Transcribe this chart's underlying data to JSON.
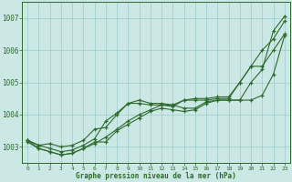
{
  "background_color": "#cce8e4",
  "grid_color": "#99cccc",
  "line_color": "#2d6a2d",
  "marker_color": "#2d6a2d",
  "xlabel": "Graphe pression niveau de la mer (hPa)",
  "xlim": [
    -0.5,
    23.5
  ],
  "ylim": [
    1002.5,
    1007.5
  ],
  "yticks": [
    1003,
    1004,
    1005,
    1006,
    1007
  ],
  "xticks": [
    0,
    1,
    2,
    3,
    4,
    5,
    6,
    7,
    8,
    9,
    10,
    11,
    12,
    13,
    14,
    15,
    16,
    17,
    18,
    19,
    20,
    21,
    22,
    23
  ],
  "series": [
    [
      1003.2,
      1003.05,
      1002.95,
      1002.85,
      1002.9,
      1003.05,
      1003.25,
      1003.8,
      1004.05,
      1004.35,
      1004.35,
      1004.3,
      1004.3,
      1004.25,
      1004.45,
      1004.45,
      1004.45,
      1004.5,
      1004.5,
      1005.0,
      1005.5,
      1006.0,
      1006.35,
      1006.9
    ],
    [
      1003.15,
      1002.95,
      1002.85,
      1002.75,
      1002.8,
      1002.95,
      1003.1,
      1003.3,
      1003.55,
      1003.8,
      1004.0,
      1004.15,
      1004.3,
      1004.3,
      1004.2,
      1004.2,
      1004.4,
      1004.45,
      1004.45,
      1004.45,
      1005.0,
      1005.4,
      1006.6,
      1007.05
    ],
    [
      1003.2,
      1002.95,
      1002.85,
      1002.75,
      1002.8,
      1002.95,
      1003.15,
      1003.15,
      1003.5,
      1003.7,
      1003.9,
      1004.1,
      1004.2,
      1004.15,
      1004.1,
      1004.15,
      1004.35,
      1004.45,
      1004.45,
      1004.45,
      1004.45,
      1004.6,
      1005.25,
      1006.45
    ],
    [
      1003.2,
      1003.05,
      1003.1,
      1003.0,
      1003.05,
      1003.2,
      1003.55,
      1003.6,
      1004.0,
      1004.35,
      1004.45,
      1004.35,
      1004.35,
      1004.3,
      1004.45,
      1004.5,
      1004.5,
      1004.55,
      1004.55,
      1005.0,
      1005.5,
      1005.5,
      1006.0,
      1006.5
    ]
  ]
}
